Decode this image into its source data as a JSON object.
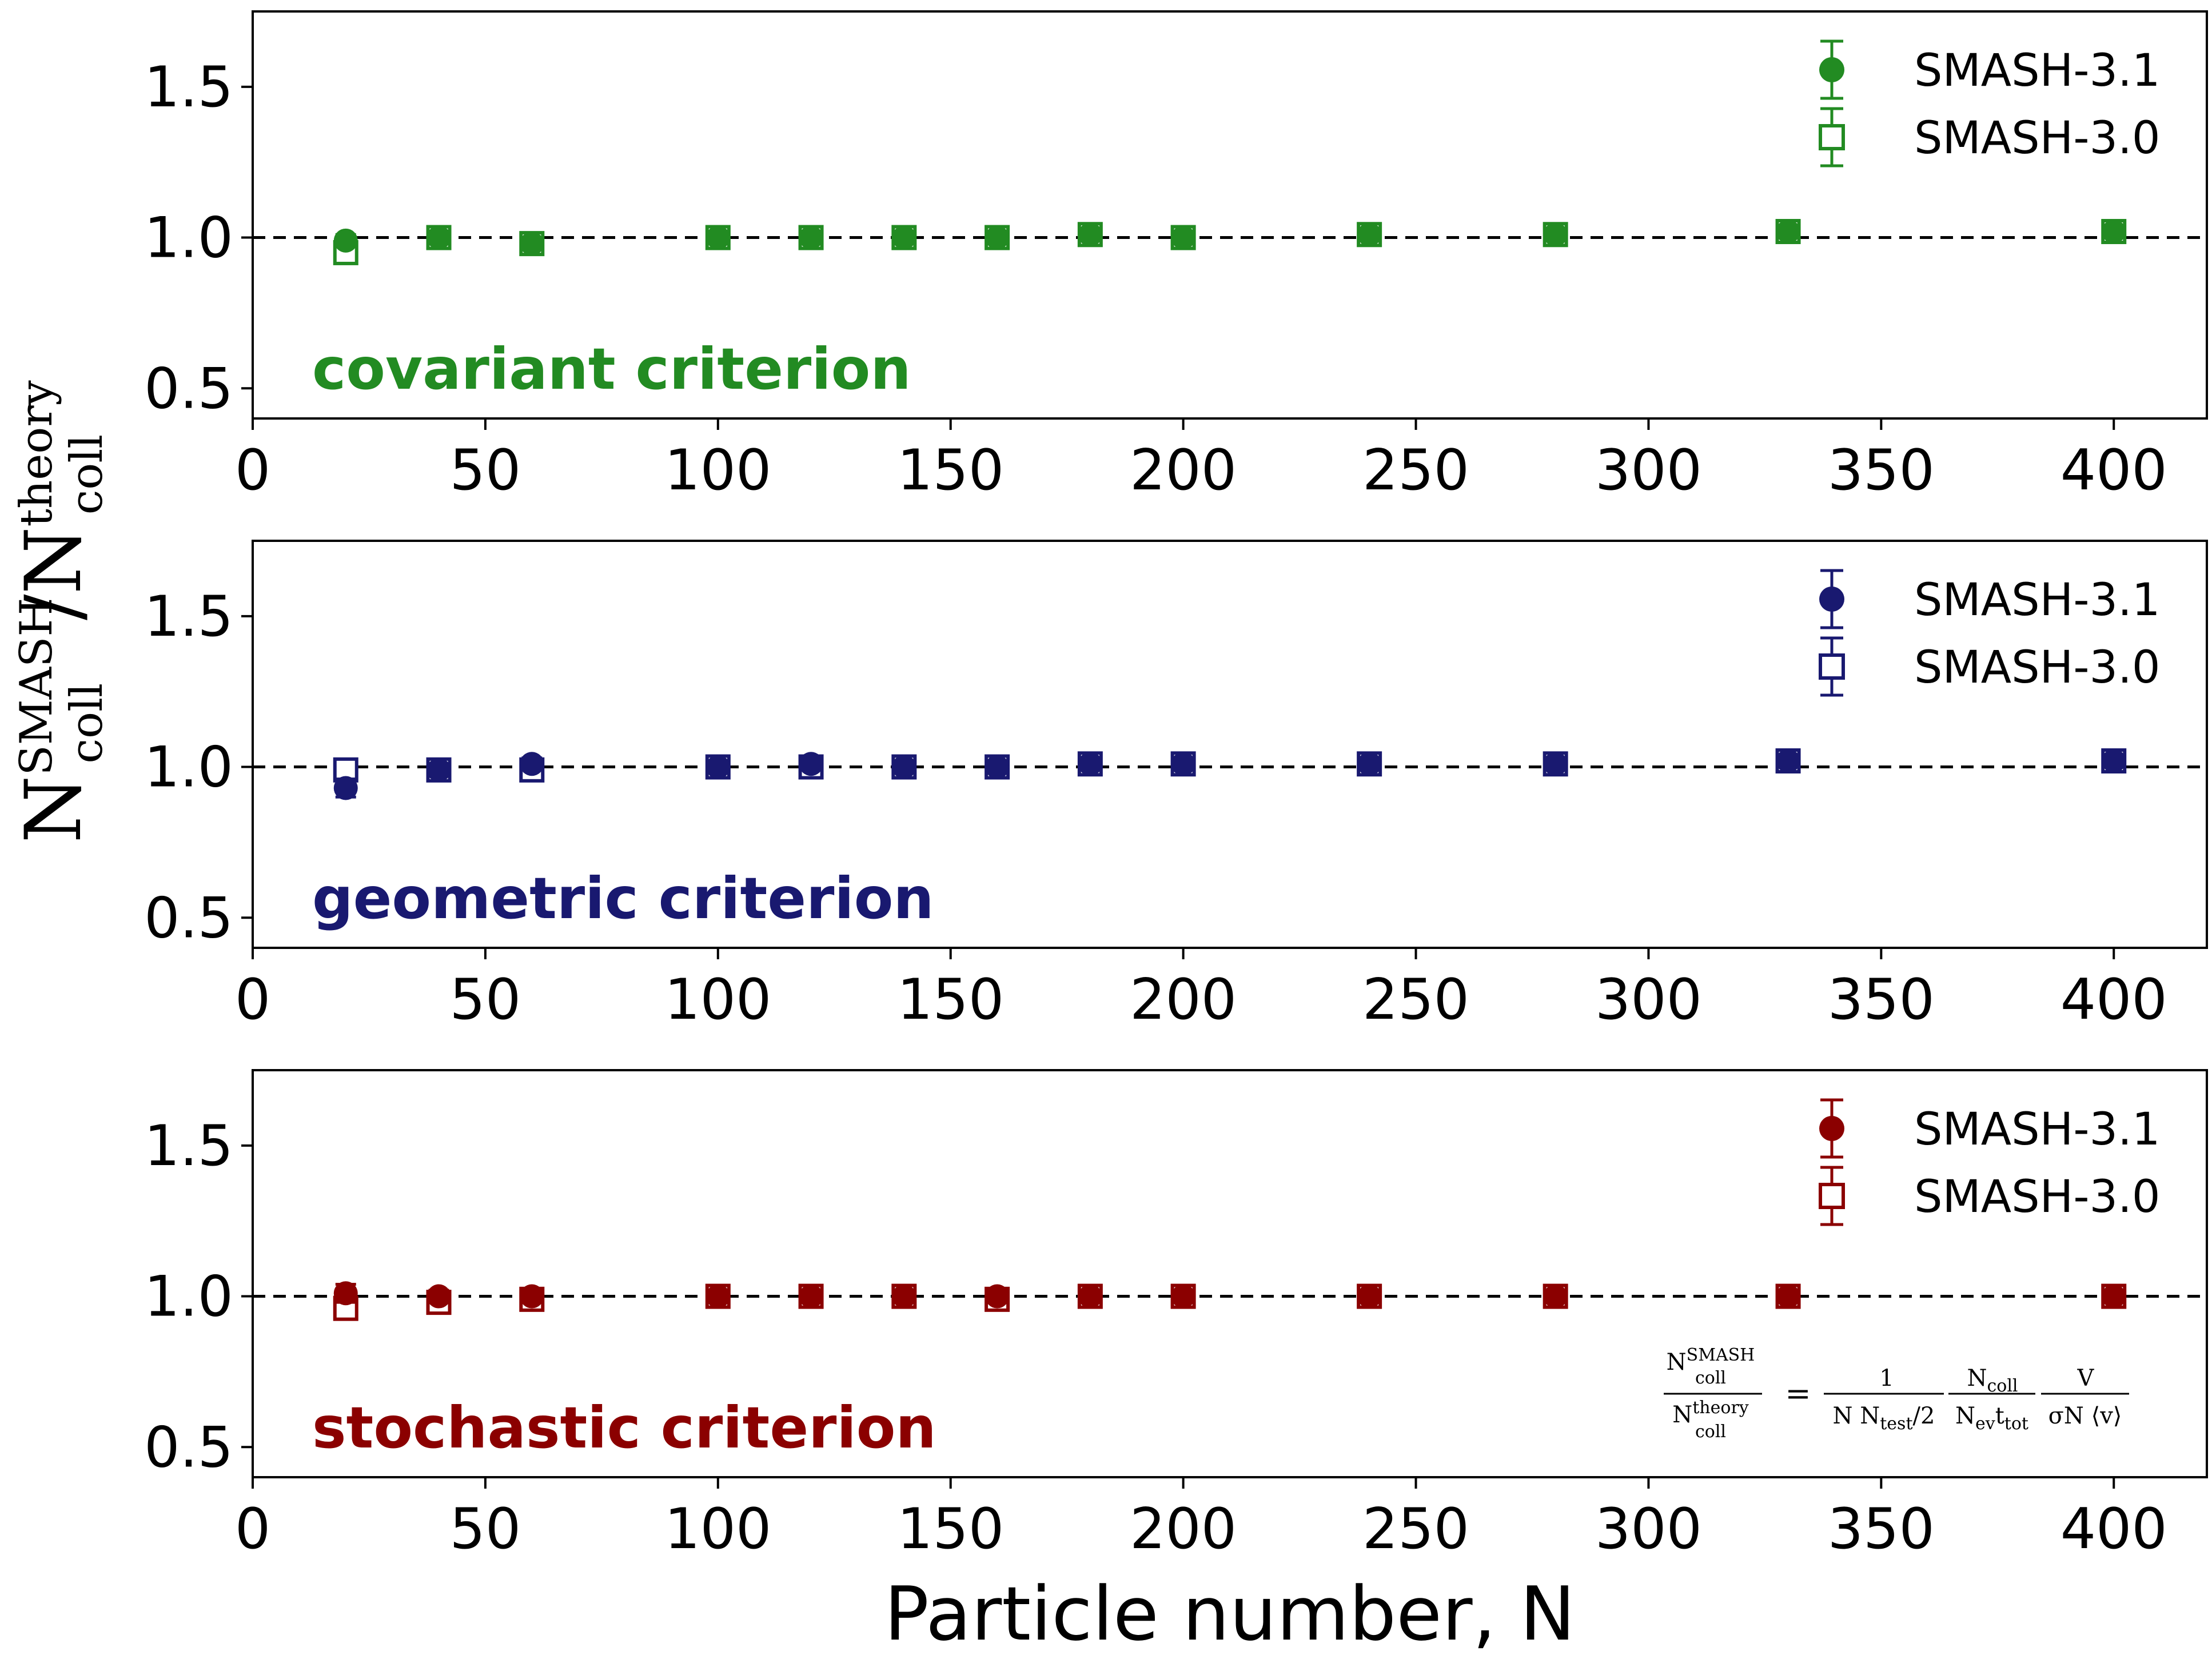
{
  "chart_data": [
    {
      "type": "scatter",
      "panel_label": "covariant criterion",
      "color": "#228b22",
      "x": [
        20,
        40,
        60,
        100,
        120,
        140,
        160,
        180,
        200,
        240,
        280,
        330,
        400
      ],
      "series": [
        {
          "name": "SMASH-3.1",
          "marker": "filled-circle",
          "values": [
            0.99,
            1.0,
            0.98,
            1.0,
            1.0,
            1.0,
            1.0,
            1.01,
            1.0,
            1.01,
            1.01,
            1.02,
            1.02
          ],
          "errors": [
            0.02,
            0.02,
            0.02,
            0.01,
            0.01,
            0.01,
            0.01,
            0.01,
            0.01,
            0.01,
            0.01,
            0.02,
            0.01
          ]
        },
        {
          "name": "SMASH-3.0",
          "marker": "open-square",
          "values": [
            0.95,
            1.0,
            0.98,
            1.0,
            1.0,
            1.0,
            1.0,
            1.01,
            1.0,
            1.01,
            1.01,
            1.02,
            1.02
          ],
          "errors": [
            0.03,
            0.02,
            0.02,
            0.01,
            0.01,
            0.01,
            0.01,
            0.01,
            0.01,
            0.01,
            0.01,
            0.02,
            0.01
          ]
        }
      ],
      "xlim": [
        0,
        420
      ],
      "ylim": [
        0.4,
        1.75
      ],
      "xticks": [
        0,
        50,
        100,
        150,
        200,
        250,
        300,
        350,
        400
      ],
      "yticks": [
        0.5,
        1.0,
        1.5
      ],
      "xtick_labels": [
        "0",
        "50",
        "100",
        "150",
        "200",
        "250",
        "300",
        "350",
        "400"
      ],
      "ytick_labels": [
        "0.5",
        "1.0",
        "1.5"
      ],
      "reference_line": 1.0,
      "legend_position": "upper-right"
    },
    {
      "type": "scatter",
      "panel_label": "geometric criterion",
      "color": "#191970",
      "x": [
        20,
        40,
        60,
        100,
        120,
        140,
        160,
        180,
        200,
        240,
        280,
        330,
        400
      ],
      "series": [
        {
          "name": "SMASH-3.1",
          "marker": "filled-circle",
          "values": [
            0.93,
            0.99,
            1.01,
            1.0,
            1.01,
            1.0,
            1.0,
            1.01,
            1.01,
            1.01,
            1.01,
            1.02,
            1.02
          ],
          "errors": [
            0.03,
            0.02,
            0.02,
            0.01,
            0.02,
            0.01,
            0.02,
            0.01,
            0.01,
            0.01,
            0.01,
            0.01,
            0.01
          ]
        },
        {
          "name": "SMASH-3.0",
          "marker": "open-square",
          "values": [
            0.99,
            0.99,
            0.99,
            1.0,
            1.0,
            1.0,
            1.0,
            1.01,
            1.01,
            1.01,
            1.01,
            1.02,
            1.02
          ],
          "errors": [
            0.03,
            0.02,
            0.02,
            0.01,
            0.02,
            0.01,
            0.02,
            0.01,
            0.01,
            0.01,
            0.01,
            0.01,
            0.01
          ]
        }
      ],
      "xlim": [
        0,
        420
      ],
      "ylim": [
        0.4,
        1.75
      ],
      "xticks": [
        0,
        50,
        100,
        150,
        200,
        250,
        300,
        350,
        400
      ],
      "yticks": [
        0.5,
        1.0,
        1.5
      ],
      "xtick_labels": [
        "0",
        "50",
        "100",
        "150",
        "200",
        "250",
        "300",
        "350",
        "400"
      ],
      "ytick_labels": [
        "0.5",
        "1.0",
        "1.5"
      ],
      "reference_line": 1.0,
      "legend_position": "upper-right"
    },
    {
      "type": "scatter",
      "panel_label": "stochastic criterion",
      "color": "#8b0000",
      "x": [
        20,
        40,
        60,
        100,
        120,
        140,
        160,
        180,
        200,
        240,
        280,
        330,
        400
      ],
      "series": [
        {
          "name": "SMASH-3.1",
          "marker": "filled-circle",
          "values": [
            1.01,
            1.0,
            1.0,
            1.0,
            1.0,
            1.0,
            1.0,
            1.0,
            1.0,
            1.0,
            1.0,
            1.0,
            1.0
          ],
          "errors": [
            0.03,
            0.02,
            0.02,
            0.01,
            0.01,
            0.02,
            0.01,
            0.01,
            0.01,
            0.01,
            0.01,
            0.01,
            0.01
          ]
        },
        {
          "name": "SMASH-3.0",
          "marker": "open-square",
          "values": [
            0.96,
            0.98,
            0.99,
            1.0,
            1.0,
            1.0,
            0.99,
            1.0,
            1.0,
            1.0,
            1.0,
            1.0,
            1.0
          ],
          "errors": [
            0.03,
            0.02,
            0.02,
            0.01,
            0.01,
            0.02,
            0.01,
            0.01,
            0.01,
            0.01,
            0.01,
            0.01,
            0.01
          ]
        }
      ],
      "xlim": [
        0,
        420
      ],
      "ylim": [
        0.4,
        1.75
      ],
      "xticks": [
        0,
        50,
        100,
        150,
        200,
        250,
        300,
        350,
        400
      ],
      "yticks": [
        0.5,
        1.0,
        1.5
      ],
      "xtick_labels": [
        "0",
        "50",
        "100",
        "150",
        "200",
        "250",
        "300",
        "350",
        "400"
      ],
      "ytick_labels": [
        "0.5",
        "1.0",
        "1.5"
      ],
      "reference_line": 1.0,
      "legend_position": "upper-right"
    }
  ],
  "xlabel": "Particle number, N",
  "ylabel": {
    "main_num": "N",
    "sup_num": "SMASH",
    "sub_num": "coll",
    "slash": "/",
    "main_den": "N",
    "sup_den": "theory",
    "sub_den": "coll"
  },
  "formula": {
    "lhs_num": "N",
    "lhs_num_sup": "SMASH",
    "lhs_num_sub": "coll",
    "lhs_den": "N",
    "lhs_den_sup": "theory",
    "lhs_den_sub": "coll",
    "equals": "=",
    "f1_num": "1",
    "f1_den_a": "N N",
    "f1_den_sub": "test",
    "f1_den_b": "/2",
    "f2_num": "N",
    "f2_num_sub": "coll",
    "f2_den_a": "N",
    "f2_den_sub1": "ev",
    "f2_den_b": "t",
    "f2_den_sub2": "tot",
    "f3_num": "V",
    "f3_den": "σN ⟨v⟩"
  }
}
